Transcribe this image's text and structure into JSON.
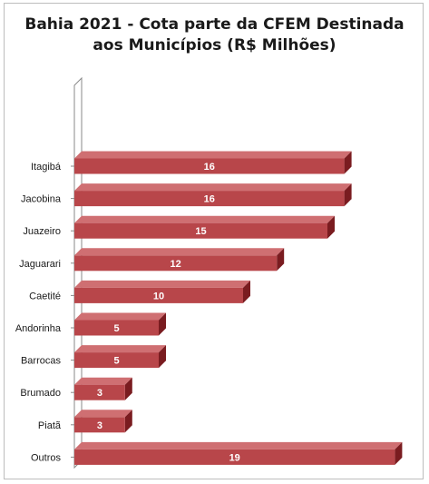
{
  "chart_data": {
    "type": "bar",
    "orientation": "horizontal",
    "title_lines": [
      "Bahia 2021 - Cota parte da CFEM Destinada",
      "aos Municípios (R$ Milhões)"
    ],
    "categories": [
      "Itagibá",
      "Jacobina",
      "Juazeiro",
      "Jaguarari",
      "Caetité",
      "Andorinha",
      "Barrocas",
      "Brumado",
      "Piatã",
      "Outros"
    ],
    "values": [
      16,
      16,
      15,
      12,
      10,
      5,
      5,
      3,
      3,
      19
    ],
    "xlim": [
      0,
      19
    ],
    "grid": false,
    "legend": "none",
    "style": "3d",
    "colors": {
      "bar_front": "#b8464a",
      "bar_top": "#cf6f72",
      "bar_side": "#7a1c20",
      "label": "#ffffff"
    }
  }
}
